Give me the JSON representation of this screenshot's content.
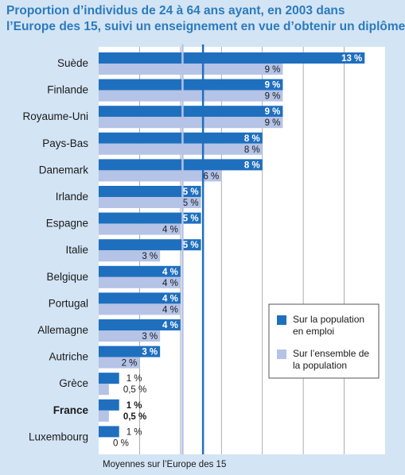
{
  "chart_data": {
    "type": "bar",
    "orientation": "horizontal",
    "title_lines": [
      "Proportion d’individus de 24 à 64 ans ayant, en 2003 dans",
      "l’Europe des 15, suivi un enseignement en vue d’obtenir un diplôme"
    ],
    "categories": [
      "Suède",
      "Finlande",
      "Royaume-Uni",
      "Pays-Bas",
      "Danemark",
      "Irlande",
      "Espagne",
      "Italie",
      "Belgique",
      "Portugal",
      "Allemagne",
      "Autriche",
      "Grèce",
      "France",
      "Luxembourg"
    ],
    "highlight_category": "France",
    "series": [
      {
        "name": "Sur la population en emploi",
        "legend_lines": [
          "Sur la population",
          "en emploi"
        ],
        "color": "#1f6fbf",
        "values": [
          13,
          9,
          9,
          8,
          8,
          5,
          5,
          5,
          4,
          4,
          4,
          3,
          1,
          1,
          1
        ],
        "labels": [
          "13 %",
          "9 %",
          "9 %",
          "8 %",
          "8 %",
          "5 %",
          "5 %",
          "5 %",
          "4 %",
          "4 %",
          "4 %",
          "3 %",
          "1 %",
          "1 %",
          "1 %"
        ]
      },
      {
        "name": "Sur l’ensemble de la population",
        "legend_lines": [
          "Sur l’ensemble de",
          "la population"
        ],
        "color": "#b4c3e6",
        "values": [
          9,
          9,
          9,
          8,
          6,
          5,
          4,
          3,
          4,
          4,
          3,
          2,
          0.5,
          0.5,
          0
        ],
        "labels": [
          "9 %",
          "9 %",
          "9 %",
          "8 %",
          "6 %",
          "5 %",
          "4 %",
          "3 %",
          "4 %",
          "4 %",
          "3 %",
          "2 %",
          "0,5 %",
          "0,5 %",
          "0 %"
        ]
      }
    ],
    "xlim": [
      0,
      14
    ],
    "grid": true,
    "averages": {
      "label": "Moyennes sur l’Europe des 15",
      "employed": 5.1,
      "total": 4.1
    },
    "legend_position": "bottom-right"
  }
}
